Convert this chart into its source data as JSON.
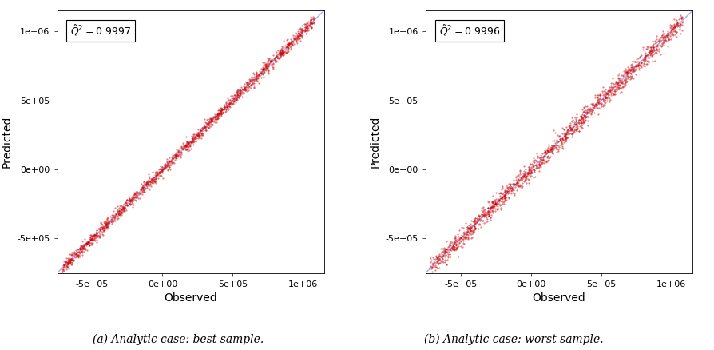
{
  "n_points": 1500,
  "xlim": [
    -750000.0,
    1150000.0
  ],
  "ylim": [
    -750000.0,
    1150000.0
  ],
  "xticks": [
    -500000.0,
    0,
    500000.0,
    1000000.0
  ],
  "yticks": [
    -500000.0,
    0,
    500000.0,
    1000000.0
  ],
  "xlabel": "Observed",
  "ylabel": "Predicted",
  "dot_color": "#cc0000",
  "line_color": "#aaaaff",
  "dot_size": 2.5,
  "dot_alpha": 0.5,
  "subplot1": {
    "q2_str": "$\\tilde{Q}^2 = 0.9997$",
    "caption": "(a) Analytic case: best sample.",
    "seed": 42,
    "x_min": -720000.0,
    "x_max": 1080000.0,
    "noise_scale": 0.012
  },
  "subplot2": {
    "q2_str": "$\\tilde{Q}^2 = 0.9996$",
    "caption": "(b) Analytic case: worst sample.",
    "seed": 77,
    "x_min": -720000.0,
    "x_max": 1080000.0,
    "noise_scale": 0.018
  },
  "background_color": "#ffffff",
  "tick_fontsize": 8,
  "label_fontsize": 10,
  "annotation_fontsize": 9,
  "caption_fontsize": 10
}
